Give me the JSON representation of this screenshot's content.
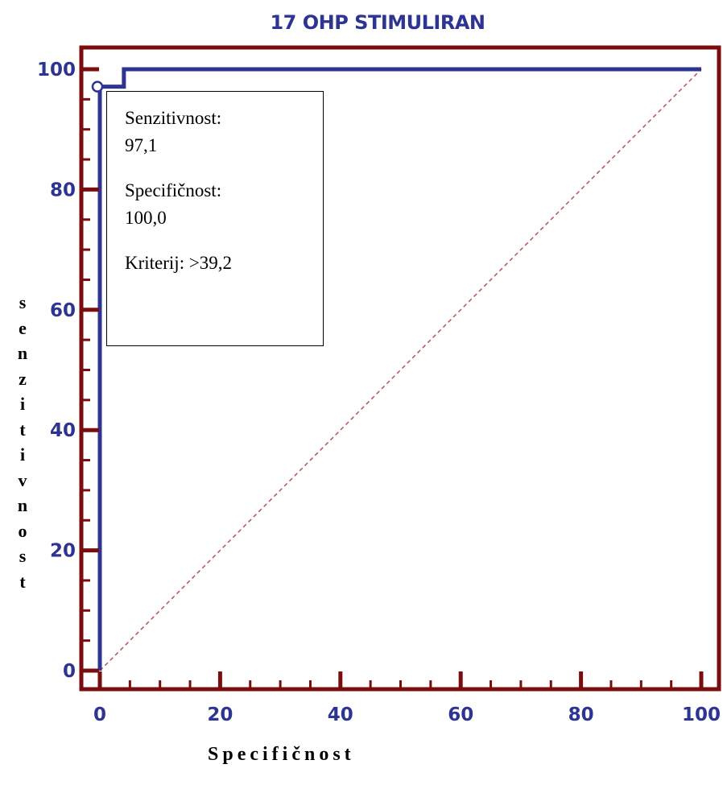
{
  "title": "17 OHP STIMULIRAN",
  "info": {
    "sens_label": "Senzitivnost:",
    "sens_value": "97,1",
    "spec_label": "Specifičnost:",
    "spec_value": "100,0",
    "criterion": "Kriterij: >39,2"
  },
  "ylabel_letters": [
    "s",
    "e",
    "n",
    "z",
    "i",
    "t",
    "i",
    "v",
    "n",
    "o",
    "s",
    "t"
  ],
  "xlabel": "Specifičnost",
  "colors": {
    "frame": "#7a0d0d",
    "curve": "#2e3492",
    "diagonal": "#c0504d",
    "text": "#2e3492"
  },
  "chart_data": {
    "type": "line",
    "title": "17 OHP STIMULIRAN",
    "xlabel": "Specifičnost",
    "ylabel": "senzitivnost",
    "xlim": [
      0,
      100
    ],
    "ylim": [
      0,
      100
    ],
    "x_ticks": [
      0,
      20,
      40,
      60,
      80,
      100
    ],
    "y_ticks": [
      0,
      20,
      40,
      60,
      80,
      100
    ],
    "series": [
      {
        "x": [
          0,
          0,
          4,
          4,
          100
        ],
        "y": [
          0,
          97.1,
          97.1,
          100,
          100
        ]
      }
    ],
    "reference_line": {
      "x": [
        0,
        100
      ],
      "y": [
        0,
        100
      ],
      "style": "dashed"
    },
    "highlight_point": {
      "x": 0,
      "y": 97.1
    },
    "grid": false
  }
}
